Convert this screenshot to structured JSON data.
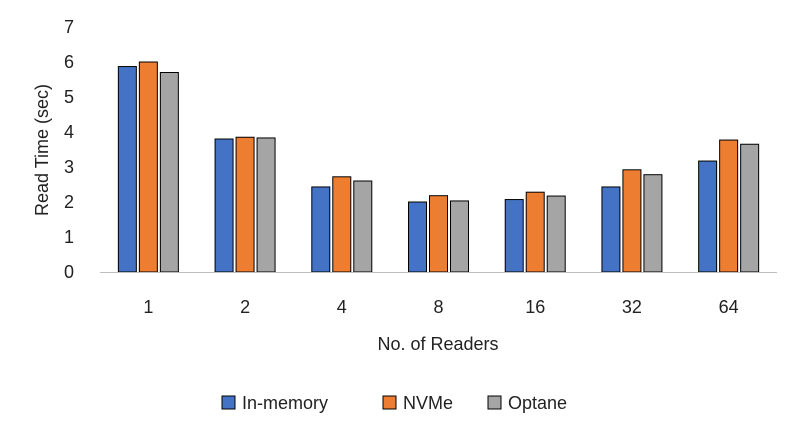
{
  "chart_data": {
    "type": "bar",
    "title": "",
    "xlabel": "No. of Readers",
    "ylabel": "Read Time (sec)",
    "categories": [
      "1",
      "2",
      "4",
      "8",
      "16",
      "32",
      "64"
    ],
    "ylim": [
      0,
      7
    ],
    "yticks": [
      0,
      1,
      2,
      3,
      4,
      5,
      6,
      7
    ],
    "grid": false,
    "legend_position": "bottom",
    "series": [
      {
        "name": "In-memory",
        "color": "#4472C4",
        "values": [
          5.87,
          3.8,
          2.43,
          2.0,
          2.07,
          2.43,
          3.17
        ]
      },
      {
        "name": "NVMe",
        "color": "#ED7D31",
        "values": [
          6.0,
          3.85,
          2.72,
          2.18,
          2.28,
          2.92,
          3.77
        ]
      },
      {
        "name": "Optane",
        "color": "#A5A5A5",
        "values": [
          5.7,
          3.83,
          2.6,
          2.03,
          2.17,
          2.78,
          3.65
        ]
      }
    ]
  }
}
